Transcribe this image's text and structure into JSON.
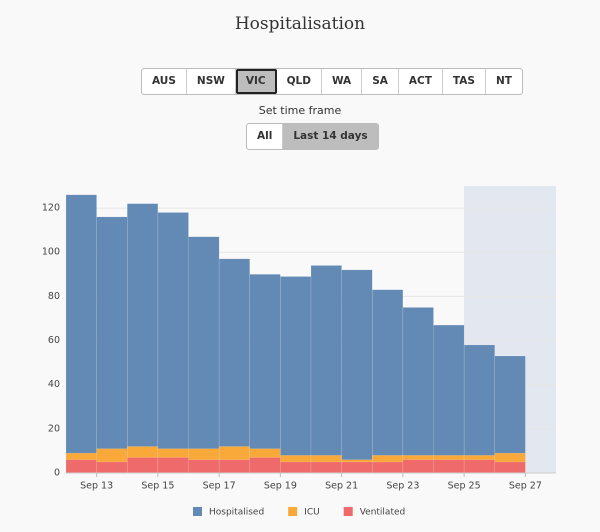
{
  "chart_data": {
    "type": "bar",
    "title": "Hospitalisation",
    "controls": {
      "regions": [
        "AUS",
        "NSW",
        "VIC",
        "QLD",
        "WA",
        "SA",
        "ACT",
        "TAS",
        "NT"
      ],
      "active_region": "VIC",
      "timeframe_label": "Set time frame",
      "timeframes": [
        "All",
        "Last 14 days"
      ],
      "active_timeframe": "Last 14 days"
    },
    "categories": [
      null,
      "Sep 13",
      null,
      "Sep 15",
      null,
      "Sep 17",
      null,
      "Sep 19",
      null,
      "Sep 21",
      null,
      "Sep 23",
      null,
      "Sep 25",
      null,
      "Sep 27"
    ],
    "overlap": true,
    "series": [
      {
        "name": "Hospitalised",
        "color": "#6389b5",
        "values": [
          126,
          116,
          122,
          118,
          107,
          97,
          90,
          89,
          94,
          92,
          83,
          75,
          67,
          58,
          53,
          null
        ]
      },
      {
        "name": "ICU",
        "color": "#f9a93a",
        "values": [
          9,
          11,
          12,
          11,
          11,
          12,
          11,
          8,
          8,
          6,
          8,
          8,
          8,
          8,
          9,
          null
        ]
      },
      {
        "name": "Ventilated",
        "color": "#ef6b6b",
        "values": [
          6,
          5,
          7,
          7,
          6,
          6,
          7,
          5,
          5,
          5,
          5,
          6,
          6,
          6,
          5,
          null
        ]
      }
    ],
    "ylim": [
      0,
      130
    ],
    "yticks": [
      0,
      20,
      40,
      60,
      80,
      100,
      120
    ],
    "grid": true
  }
}
